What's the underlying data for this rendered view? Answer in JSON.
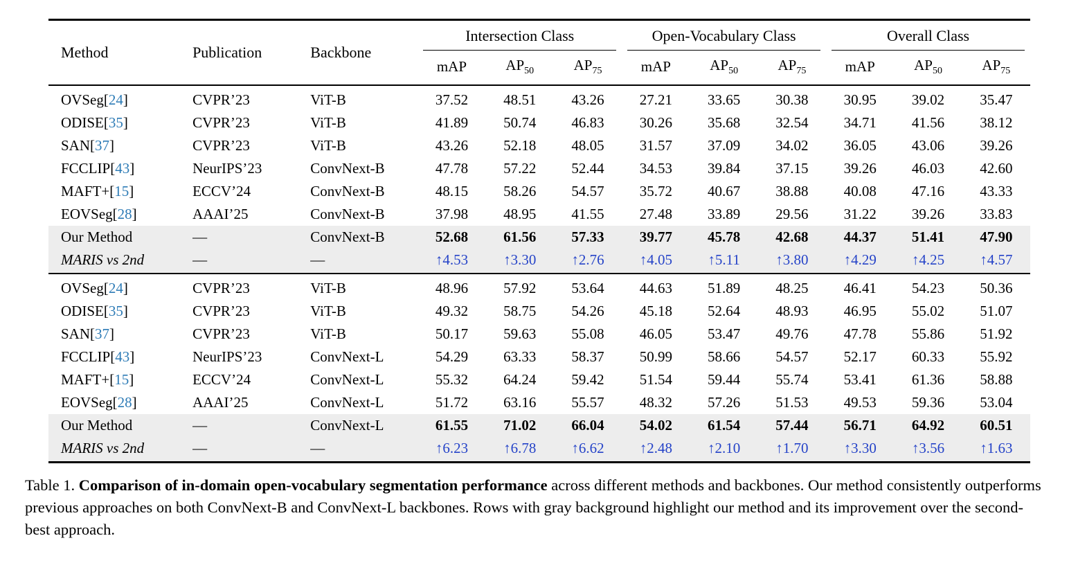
{
  "colors": {
    "cite": "#2d7bb6",
    "delta": "#2543c8",
    "highlight": "#ededed"
  },
  "table": {
    "static_headers": [
      "Method",
      "Publication",
      "Backbone"
    ],
    "column_groups": [
      "Intersection Class",
      "Open-Vocabulary Class",
      "Overall Class"
    ],
    "metric_headers": [
      {
        "label": "mAP",
        "sub": ""
      },
      {
        "label": "AP",
        "sub": "50"
      },
      {
        "label": "AP",
        "sub": "75"
      }
    ],
    "groups": [
      {
        "rows": [
          {
            "method": "OVSeg",
            "cite": "24",
            "publication": "CVPR’23",
            "backbone": "ViT-B",
            "style": "normal",
            "values": [
              "37.52",
              "48.51",
              "43.26",
              "27.21",
              "33.65",
              "30.38",
              "30.95",
              "39.02",
              "35.47"
            ]
          },
          {
            "method": "ODISE",
            "cite": "35",
            "publication": "CVPR’23",
            "backbone": "ViT-B",
            "style": "normal",
            "values": [
              "41.89",
              "50.74",
              "46.83",
              "30.26",
              "35.68",
              "32.54",
              "34.71",
              "41.56",
              "38.12"
            ]
          },
          {
            "method": "SAN",
            "cite": "37",
            "publication": "CVPR’23",
            "backbone": "ViT-B",
            "style": "normal",
            "values": [
              "43.26",
              "52.18",
              "48.05",
              "31.57",
              "37.09",
              "34.02",
              "36.05",
              "43.06",
              "39.26"
            ]
          },
          {
            "method": "FCCLIP",
            "cite": "43",
            "publication": "NeurIPS’23",
            "backbone": "ConvNext-B",
            "style": "normal",
            "values": [
              "47.78",
              "57.22",
              "52.44",
              "34.53",
              "39.84",
              "37.15",
              "39.26",
              "46.03",
              "42.60"
            ]
          },
          {
            "method": "MAFT+",
            "cite": "15",
            "publication": "ECCV’24",
            "backbone": "ConvNext-B",
            "style": "normal",
            "values": [
              "48.15",
              "58.26",
              "54.57",
              "35.72",
              "40.67",
              "38.88",
              "40.08",
              "47.16",
              "43.33"
            ]
          },
          {
            "method": "EOVSeg",
            "cite": "28",
            "publication": "AAAI’25",
            "backbone": "ConvNext-B",
            "style": "normal",
            "values": [
              "37.98",
              "48.95",
              "41.55",
              "27.48",
              "33.89",
              "29.56",
              "31.22",
              "39.26",
              "33.83"
            ]
          },
          {
            "method": "Our Method",
            "cite": null,
            "publication": "—",
            "backbone": "ConvNext-B",
            "style": "ours",
            "values": [
              "52.68",
              "61.56",
              "57.33",
              "39.77",
              "45.78",
              "42.68",
              "44.37",
              "51.41",
              "47.90"
            ]
          },
          {
            "method": "MARIS vs 2nd",
            "cite": null,
            "publication": "—",
            "backbone": "—",
            "style": "delta",
            "values": [
              "↑4.53",
              "↑3.30",
              "↑2.76",
              "↑4.05",
              "↑5.11",
              "↑3.80",
              "↑4.29",
              "↑4.25",
              "↑4.57"
            ]
          }
        ]
      },
      {
        "rows": [
          {
            "method": "OVSeg",
            "cite": "24",
            "publication": "CVPR’23",
            "backbone": "ViT-B",
            "style": "normal",
            "values": [
              "48.96",
              "57.92",
              "53.64",
              "44.63",
              "51.89",
              "48.25",
              "46.41",
              "54.23",
              "50.36"
            ]
          },
          {
            "method": "ODISE",
            "cite": "35",
            "publication": "CVPR’23",
            "backbone": "ViT-B",
            "style": "normal",
            "values": [
              "49.32",
              "58.75",
              "54.26",
              "45.18",
              "52.64",
              "48.93",
              "46.95",
              "55.02",
              "51.07"
            ]
          },
          {
            "method": "SAN",
            "cite": "37",
            "publication": "CVPR’23",
            "backbone": "ViT-B",
            "style": "normal",
            "values": [
              "50.17",
              "59.63",
              "55.08",
              "46.05",
              "53.47",
              "49.76",
              "47.78",
              "55.86",
              "51.92"
            ]
          },
          {
            "method": "FCCLIP",
            "cite": "43",
            "publication": "NeurIPS’23",
            "backbone": "ConvNext-L",
            "style": "normal",
            "values": [
              "54.29",
              "63.33",
              "58.37",
              "50.99",
              "58.66",
              "54.57",
              "52.17",
              "60.33",
              "55.92"
            ]
          },
          {
            "method": "MAFT+",
            "cite": "15",
            "publication": "ECCV’24",
            "backbone": "ConvNext-L",
            "style": "normal",
            "values": [
              "55.32",
              "64.24",
              "59.42",
              "51.54",
              "59.44",
              "55.74",
              "53.41",
              "61.36",
              "58.88"
            ]
          },
          {
            "method": "EOVSeg",
            "cite": "28",
            "publication": "AAAI’25",
            "backbone": "ConvNext-L",
            "style": "normal",
            "values": [
              "51.72",
              "63.16",
              "55.57",
              "48.32",
              "57.26",
              "51.53",
              "49.53",
              "59.36",
              "53.04"
            ]
          },
          {
            "method": "Our Method",
            "cite": null,
            "publication": "—",
            "backbone": "ConvNext-L",
            "style": "ours",
            "values": [
              "61.55",
              "71.02",
              "66.04",
              "54.02",
              "61.54",
              "57.44",
              "56.71",
              "64.92",
              "60.51"
            ]
          },
          {
            "method": "MARIS vs 2nd",
            "cite": null,
            "publication": "—",
            "backbone": "—",
            "style": "delta",
            "values": [
              "↑6.23",
              "↑6.78",
              "↑6.62",
              "↑2.48",
              "↑2.10",
              "↑1.70",
              "↑3.30",
              "↑3.56",
              "↑1.63"
            ]
          }
        ]
      }
    ]
  },
  "caption": {
    "label": "Table 1. ",
    "bold": "Comparison of in-domain open-vocabulary segmentation performance",
    "text": " across different methods and backbones. Our method consistently outperforms previous approaches on both ConvNext-B and ConvNext-L backbones. Rows with gray background highlight our method and its improvement over the second-best approach."
  }
}
